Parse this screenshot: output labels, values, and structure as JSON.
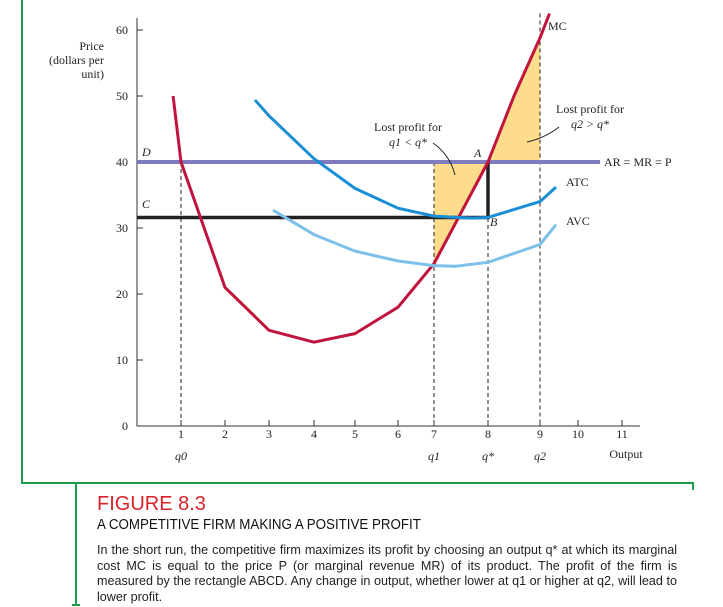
{
  "chart_data": {
    "type": "line",
    "title": "",
    "ylabel": "Price (dollars per unit)",
    "ylabel_lines": [
      "Price",
      "(dollars per",
      "unit)"
    ],
    "xlabel": "Output",
    "ylim": [
      0,
      60
    ],
    "xlim": [
      0,
      11
    ],
    "yticks": [
      0,
      10,
      20,
      30,
      40,
      50,
      60
    ],
    "xticks": [
      1,
      2,
      3,
      4,
      5,
      6,
      7,
      8,
      9,
      10,
      11
    ],
    "q_labels": [
      {
        "x": 1,
        "text": "q0"
      },
      {
        "x": 7,
        "text": "q1"
      },
      {
        "x": 8,
        "text": "q*"
      },
      {
        "x": 9,
        "text": "q2"
      }
    ],
    "price": 40,
    "price_label": "AR = MR = P",
    "atc_at_qstar": 31.6,
    "points": {
      "A": "A",
      "B": "B",
      "C": "C",
      "D": "D"
    },
    "series": [
      {
        "name": "MC",
        "color": "#c0143c",
        "x": [
          0.82,
          1,
          2,
          3,
          4,
          5,
          6,
          7,
          8,
          8.5,
          9,
          9.25
        ],
        "y": [
          50,
          40,
          21,
          14.5,
          12.7,
          14,
          18,
          24.6,
          40,
          50,
          58.8,
          62.5
        ]
      },
      {
        "name": "ATC",
        "color": "#1a8fd6",
        "x": [
          2.68,
          3,
          4,
          5,
          6,
          7,
          7.7,
          8,
          9,
          9.42
        ],
        "y": [
          49.4,
          47,
          40.5,
          36,
          33,
          31.8,
          31.5,
          31.6,
          34,
          36.2
        ]
      },
      {
        "name": "AVC",
        "color": "#7dc0ea",
        "x": [
          3.09,
          4,
          5,
          6,
          7,
          7.4,
          8,
          9,
          9.42
        ],
        "y": [
          32.7,
          29,
          26.5,
          25,
          24.3,
          24.2,
          24.8,
          27.5,
          30.5
        ]
      }
    ],
    "annotations": [
      {
        "text1": "Lost profit for",
        "text2": "q1 < q*"
      },
      {
        "text1": "Lost profit for",
        "text2": "q2 > q*"
      }
    ],
    "colors": {
      "price": "#7f7bbf",
      "shade": "#fddc8c",
      "frame": "#1aa04a"
    }
  },
  "caption": {
    "figure": "FIGURE 8.3",
    "title": "A COMPETITIVE FIRM MAKING A POSITIVE PROFIT",
    "body": "In the short run, the competitive firm maximizes its profit by choosing an output q* at which its marginal cost MC is equal to the price P (or marginal revenue MR) of its product. The profit of the firm is measured by the rectangle ABCD. Any change in output, whether lower at q1 or higher at q2, will lead to lower profit."
  }
}
